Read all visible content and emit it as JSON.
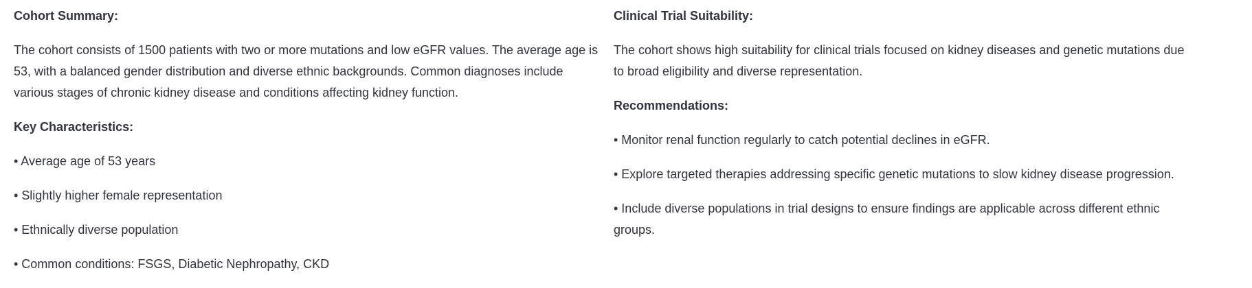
{
  "left": {
    "summary_heading": "Cohort Summary:",
    "summary_text": "The cohort consists of 1500 patients with two or more mutations and low eGFR values. The average age is 53, with a balanced gender distribution and diverse ethnic backgrounds. Common diagnoses include various stages of chronic kidney disease and conditions affecting kidney function.",
    "characteristics_heading": "Key Characteristics:",
    "characteristics": [
      "• Average age of 53 years",
      "• Slightly higher female representation",
      "• Ethnically diverse population",
      "• Common conditions: FSGS, Diabetic Nephropathy, CKD"
    ]
  },
  "right": {
    "suitability_heading": "Clinical Trial Suitability:",
    "suitability_text": "The cohort shows high suitability for clinical trials focused on kidney diseases and genetic mutations due to broad eligibility and diverse representation.",
    "recommendations_heading": "Recommendations:",
    "recommendations": [
      "• Monitor renal function regularly to catch potential declines in eGFR.",
      "• Explore targeted therapies addressing specific genetic mutations to slow kidney disease progression.",
      "• Include diverse populations in trial designs to ensure findings are applicable across different ethnic groups."
    ]
  }
}
